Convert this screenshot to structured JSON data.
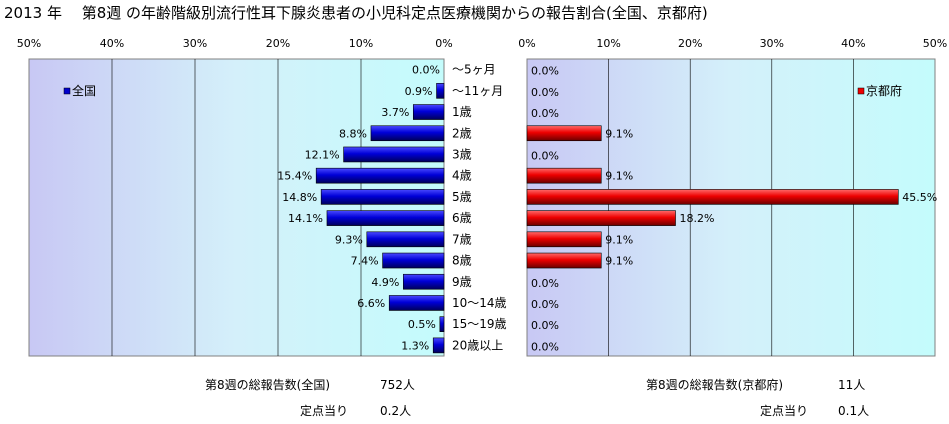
{
  "title": "2013 年　 第8週 の年齢階級別流行性耳下腺炎患者の小児科定点医療機関からの報告割合(全国、京都府)",
  "chart_data": {
    "type": "bar",
    "categories": [
      "～5ヶ月",
      "～11ヶ月",
      "1歳",
      "2歳",
      "3歳",
      "4歳",
      "5歳",
      "6歳",
      "7歳",
      "8歳",
      "9歳",
      "10～14歳",
      "15～19歳",
      "20歳以上"
    ],
    "ticks": [
      "50%",
      "40%",
      "30%",
      "20%",
      "10%",
      "0%"
    ],
    "right_ticks": [
      "0%",
      "10%",
      "20%",
      "30%",
      "40%",
      "50%"
    ],
    "xlim": [
      0,
      50
    ],
    "grid": true,
    "series": [
      {
        "name": "全国",
        "legend": "top-left",
        "color": "#0000cc",
        "values": [
          0.0,
          0.9,
          3.7,
          8.8,
          12.1,
          15.4,
          14.8,
          14.1,
          9.3,
          7.4,
          4.9,
          6.6,
          0.5,
          1.3
        ],
        "labels": [
          "0.0%",
          "0.9%",
          "3.7%",
          "8.8%",
          "12.1%",
          "15.4%",
          "14.8%",
          "14.1%",
          "9.3%",
          "7.4%",
          "4.9%",
          "6.6%",
          "0.5%",
          "1.3%"
        ]
      },
      {
        "name": "京都府",
        "legend": "top-right",
        "color": "#ee0000",
        "values": [
          0.0,
          0.0,
          0.0,
          9.1,
          0.0,
          9.1,
          45.5,
          18.2,
          9.1,
          9.1,
          0.0,
          0.0,
          0.0,
          0.0
        ],
        "labels": [
          "0.0%",
          "0.0%",
          "0.0%",
          "9.1%",
          "0.0%",
          "9.1%",
          "45.5%",
          "18.2%",
          "9.1%",
          "9.1%",
          "0.0%",
          "0.0%",
          "0.0%",
          "0.0%"
        ]
      }
    ]
  },
  "footer": {
    "national_total_label": "第8週の総報告数(全国)",
    "national_total_value": "752人",
    "national_per_label": "定点当り",
    "national_per_value": "0.2人",
    "kyoto_total_label": "第8週の総報告数(京都府)",
    "kyoto_total_value": "11人",
    "kyoto_per_label": "定点当り",
    "kyoto_per_value": "0.1人"
  }
}
